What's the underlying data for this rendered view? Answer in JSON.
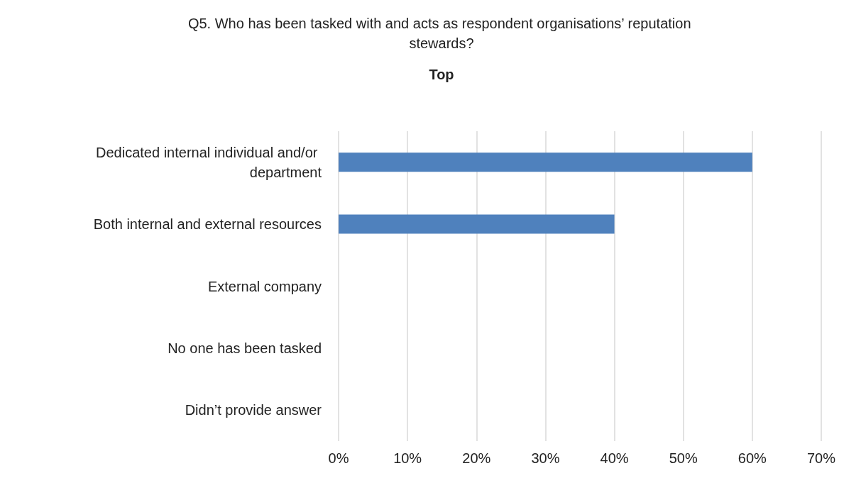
{
  "chart_data": {
    "type": "bar",
    "orientation": "horizontal",
    "title": "Q5. Who has been tasked with and acts as respondent organisations’ reputation stewards?",
    "subtitle": "Top",
    "categories": [
      "Dedicated internal individual and/or department",
      "Both internal and external resources",
      "External company",
      "No one has been tasked",
      "Didn’t provide answer"
    ],
    "values": [
      60,
      40,
      0,
      0,
      0
    ],
    "color": "#4f81bd",
    "xlim": [
      0,
      70
    ],
    "xticks": [
      {
        "value": 0,
        "label": "0%"
      },
      {
        "value": 10,
        "label": "10%"
      },
      {
        "value": 20,
        "label": "20%"
      },
      {
        "value": 30,
        "label": "30%"
      },
      {
        "value": 40,
        "label": "40%"
      },
      {
        "value": 50,
        "label": "50%"
      },
      {
        "value": 60,
        "label": "60%"
      },
      {
        "value": 70,
        "label": "70%"
      }
    ],
    "grid": "x"
  }
}
